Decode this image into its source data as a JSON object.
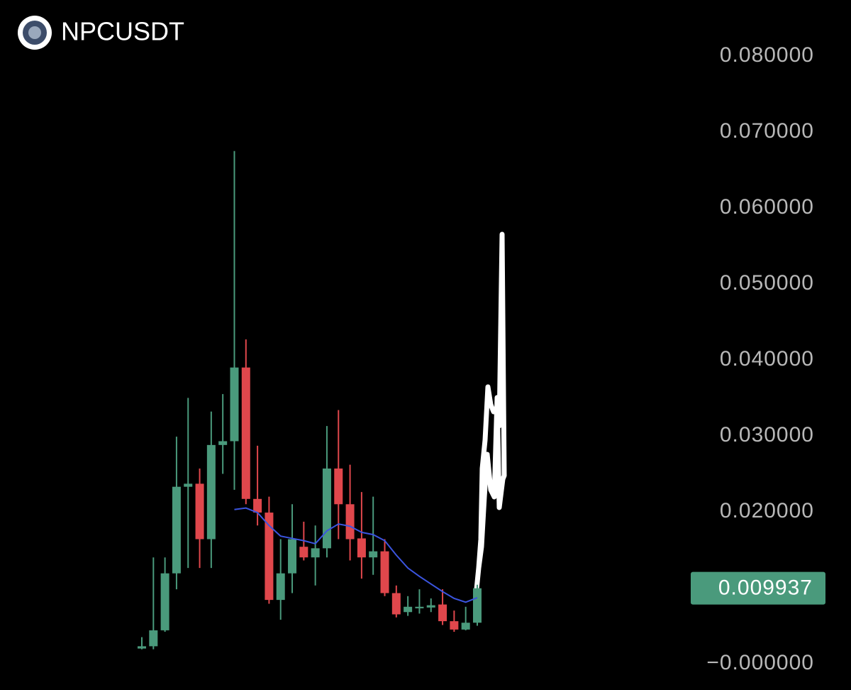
{
  "chart_data": {
    "type": "candlestick",
    "title": "NPCUSDT",
    "open": [
      0.002,
      0.0023,
      0.0044,
      0.0119,
      0.0233,
      0.0237,
      0.0164,
      0.0288,
      0.0293,
      0.039,
      0.0217,
      0.0199,
      0.0084,
      0.0119,
      0.0154,
      0.014,
      0.0152,
      0.0257,
      0.021,
      0.0165,
      0.014,
      0.0148,
      0.0093,
      0.0068,
      0.0073,
      0.0074,
      0.0078,
      0.0056,
      0.0045,
      0.0054
    ],
    "high": [
      0.0035,
      0.014,
      0.014,
      0.0299,
      0.035,
      0.0257,
      0.0332,
      0.0355,
      0.0675,
      0.0427,
      0.0287,
      0.022,
      0.0164,
      0.021,
      0.0187,
      0.0182,
      0.0313,
      0.0334,
      0.0262,
      0.0226,
      0.022,
      0.0164,
      0.0103,
      0.0089,
      0.0098,
      0.0086,
      0.0098,
      0.007,
      0.0075,
      0.0104
    ],
    "low": [
      0.0019,
      0.0019,
      0.0042,
      0.0098,
      0.0126,
      0.0126,
      0.0126,
      0.025,
      0.0229,
      0.021,
      0.0182,
      0.0079,
      0.0058,
      0.0093,
      0.0136,
      0.0103,
      0.014,
      0.0164,
      0.0136,
      0.0112,
      0.0117,
      0.0089,
      0.0061,
      0.0063,
      0.0066,
      0.0068,
      0.0051,
      0.0042,
      0.0044,
      0.005
    ],
    "close": [
      0.0023,
      0.0044,
      0.0119,
      0.0233,
      0.0237,
      0.0164,
      0.0288,
      0.0293,
      0.039,
      0.0217,
      0.0199,
      0.0084,
      0.0119,
      0.0164,
      0.014,
      0.0152,
      0.0257,
      0.021,
      0.0164,
      0.014,
      0.0148,
      0.0093,
      0.0065,
      0.0075,
      0.0075,
      0.0077,
      0.0056,
      0.0045,
      0.0054,
      0.009937
    ],
    "moving_average": [
      null,
      null,
      null,
      null,
      null,
      null,
      null,
      null,
      0.0203,
      0.0205,
      0.0199,
      0.0182,
      0.0168,
      0.0165,
      0.0162,
      0.0158,
      0.0175,
      0.0184,
      0.0181,
      0.0173,
      0.017,
      0.0162,
      0.0143,
      0.0126,
      0.0115,
      0.0105,
      0.0095,
      0.0086,
      0.0081,
      0.0087
    ],
    "up_color": "#4a9a7c",
    "down_color": "#e0474c",
    "ma_color": "#3b55e0",
    "last_price": 0.009937,
    "ylim": [
      -0.0003,
      0.0857
    ],
    "yticks": [
      {
        "value": 0,
        "label": "−0.000000"
      },
      {
        "value": 0.02,
        "label": "0.020000"
      },
      {
        "value": 0.03,
        "label": "0.030000"
      },
      {
        "value": 0.04,
        "label": "0.040000"
      },
      {
        "value": 0.05,
        "label": "0.050000"
      },
      {
        "value": 0.06,
        "label": "0.060000"
      },
      {
        "value": 0.07,
        "label": "0.070000"
      },
      {
        "value": 0.08,
        "label": "0.080000"
      }
    ]
  }
}
